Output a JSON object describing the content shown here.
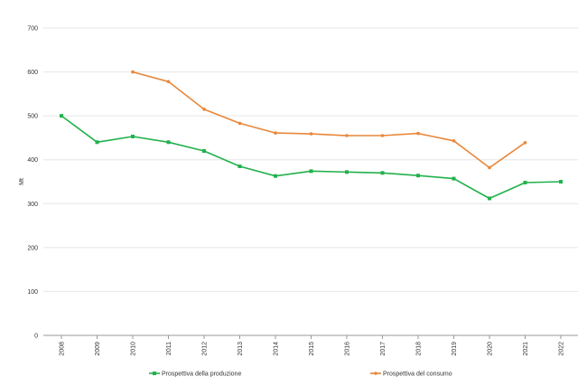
{
  "chart_data": {
    "type": "line",
    "title": "",
    "xlabel": "",
    "ylabel": "Mt",
    "ylim": [
      0,
      700
    ],
    "yticks": [
      0,
      100,
      200,
      300,
      400,
      500,
      600,
      700
    ],
    "grid": "horizontal",
    "legend_position": "bottom",
    "categories": [
      "2008",
      "2009",
      "2010",
      "2011",
      "2012",
      "2013",
      "2014",
      "2015",
      "2016",
      "2017",
      "2018",
      "2019",
      "2020",
      "2021",
      "2022"
    ],
    "series": [
      {
        "name": "Prospettiva della produzione",
        "color": "#22b14c",
        "marker": "square",
        "values": [
          500,
          440,
          453,
          440,
          420,
          385,
          363,
          374,
          372,
          370,
          364,
          357,
          312,
          348,
          350
        ]
      },
      {
        "name": "Prospettiva del consumo",
        "color": "#e8873a",
        "marker": "diamond",
        "values": [
          null,
          null,
          600,
          578,
          515,
          483,
          461,
          459,
          455,
          455,
          460,
          443,
          382,
          439,
          null
        ]
      }
    ]
  }
}
